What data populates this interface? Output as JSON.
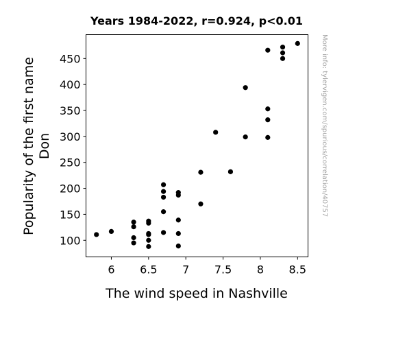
{
  "chart_data": {
    "type": "scatter",
    "title": "Years 1984-2022, r=0.924, p<0.01",
    "xlabel": "The wind speed in Nashville",
    "ylabel": [
      "Popularity of the first name",
      "Don"
    ],
    "xlim": [
      5.66,
      8.64
    ],
    "ylim": [
      68,
      496
    ],
    "xticks": [
      6,
      6.5,
      7,
      7.5,
      8,
      8.5
    ],
    "xtick_labels": [
      "6",
      "6.5",
      "7",
      "7.5",
      "8",
      "8.5"
    ],
    "yticks": [
      100,
      150,
      200,
      250,
      300,
      350,
      400,
      450
    ],
    "ytick_labels": [
      "100",
      "150",
      "200",
      "250",
      "300",
      "350",
      "400",
      "450"
    ],
    "grid": false,
    "point_color": "#000000",
    "points": [
      {
        "x": 5.8,
        "y": 111
      },
      {
        "x": 6.0,
        "y": 117
      },
      {
        "x": 6.3,
        "y": 135
      },
      {
        "x": 6.3,
        "y": 126
      },
      {
        "x": 6.3,
        "y": 105
      },
      {
        "x": 6.3,
        "y": 95
      },
      {
        "x": 6.5,
        "y": 137
      },
      {
        "x": 6.5,
        "y": 133
      },
      {
        "x": 6.5,
        "y": 113
      },
      {
        "x": 6.5,
        "y": 111
      },
      {
        "x": 6.5,
        "y": 100
      },
      {
        "x": 6.5,
        "y": 88
      },
      {
        "x": 6.7,
        "y": 207
      },
      {
        "x": 6.7,
        "y": 194
      },
      {
        "x": 6.7,
        "y": 183
      },
      {
        "x": 6.7,
        "y": 155
      },
      {
        "x": 6.7,
        "y": 115
      },
      {
        "x": 6.9,
        "y": 192
      },
      {
        "x": 6.9,
        "y": 187
      },
      {
        "x": 6.9,
        "y": 139
      },
      {
        "x": 6.9,
        "y": 113
      },
      {
        "x": 6.9,
        "y": 89
      },
      {
        "x": 7.2,
        "y": 231
      },
      {
        "x": 7.2,
        "y": 170
      },
      {
        "x": 7.4,
        "y": 308
      },
      {
        "x": 7.6,
        "y": 232
      },
      {
        "x": 7.8,
        "y": 394
      },
      {
        "x": 7.8,
        "y": 299
      },
      {
        "x": 8.1,
        "y": 466
      },
      {
        "x": 8.1,
        "y": 353
      },
      {
        "x": 8.1,
        "y": 332
      },
      {
        "x": 8.1,
        "y": 298
      },
      {
        "x": 8.3,
        "y": 472
      },
      {
        "x": 8.3,
        "y": 461
      },
      {
        "x": 8.3,
        "y": 450
      },
      {
        "x": 8.5,
        "y": 479
      }
    ]
  },
  "watermark": "More info: tylervigen.com/spurious/correlation/40757"
}
